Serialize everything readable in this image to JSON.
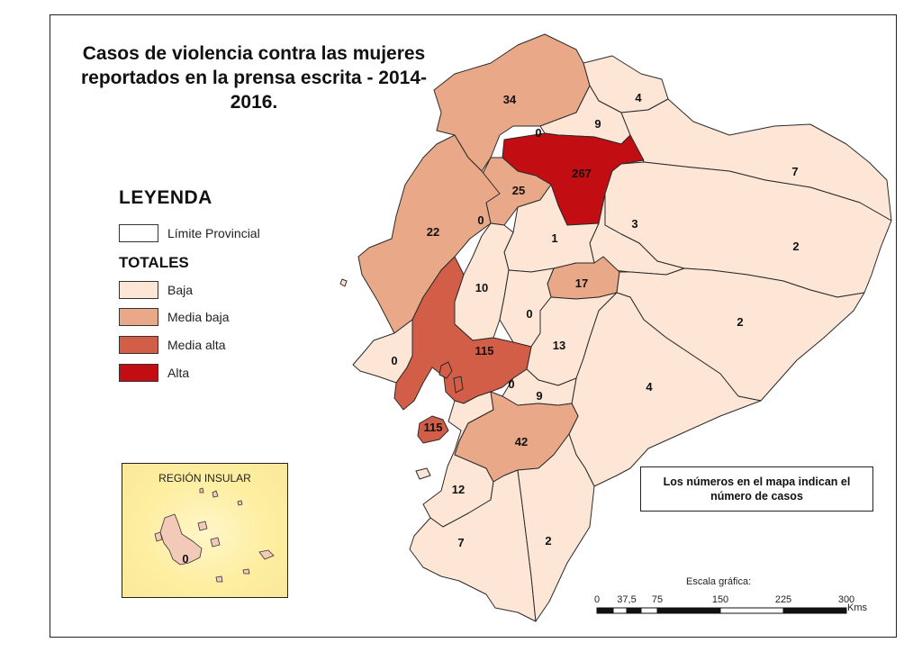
{
  "title": "Casos de violencia contra las mujeres reportados en la prensa escrita - 2014-2016.",
  "legend": {
    "heading": "LEYENDA",
    "boundary_label": "Límite Provincial",
    "totals_heading": "TOTALES",
    "classes": [
      {
        "label": "Baja",
        "color": "#fde6d6"
      },
      {
        "label": "Media baja",
        "color": "#e9a888"
      },
      {
        "label": "Media alta",
        "color": "#d35e48"
      },
      {
        "label": "Alta",
        "color": "#c20e12"
      }
    ]
  },
  "note": "Los números en el mapa indican el número de casos",
  "insular": {
    "title": "REGIÓN INSULAR",
    "value": "0"
  },
  "scale": {
    "title": "Escala gráfica:",
    "ticks": [
      "0",
      "37,5",
      "75",
      "150",
      "225",
      "300"
    ],
    "unit": "Kms"
  },
  "provinces": [
    {
      "value": "34",
      "class": "Media baja"
    },
    {
      "value": "4",
      "class": "Baja"
    },
    {
      "value": "9",
      "class": "Baja"
    },
    {
      "value": "0",
      "class": "Baja"
    },
    {
      "value": "267",
      "class": "Alta"
    },
    {
      "value": "7",
      "class": "Baja"
    },
    {
      "value": "25",
      "class": "Media baja"
    },
    {
      "value": "22",
      "class": "Media baja"
    },
    {
      "value": "0",
      "class": "Baja"
    },
    {
      "value": "3",
      "class": "Baja"
    },
    {
      "value": "1",
      "class": "Baja"
    },
    {
      "value": "2",
      "class": "Baja"
    },
    {
      "value": "10",
      "class": "Baja"
    },
    {
      "value": "17",
      "class": "Media baja"
    },
    {
      "value": "0",
      "class": "Baja"
    },
    {
      "value": "2",
      "class": "Baja"
    },
    {
      "value": "13",
      "class": "Baja"
    },
    {
      "value": "0",
      "class": "Baja"
    },
    {
      "value": "115",
      "class": "Media alta"
    },
    {
      "value": "0",
      "class": "Baja"
    },
    {
      "value": "9",
      "class": "Baja"
    },
    {
      "value": "4",
      "class": "Baja"
    },
    {
      "value": "115",
      "class": "Media alta"
    },
    {
      "value": "42",
      "class": "Media baja"
    },
    {
      "value": "12",
      "class": "Baja"
    },
    {
      "value": "7",
      "class": "Baja"
    },
    {
      "value": "2",
      "class": "Baja"
    }
  ]
}
